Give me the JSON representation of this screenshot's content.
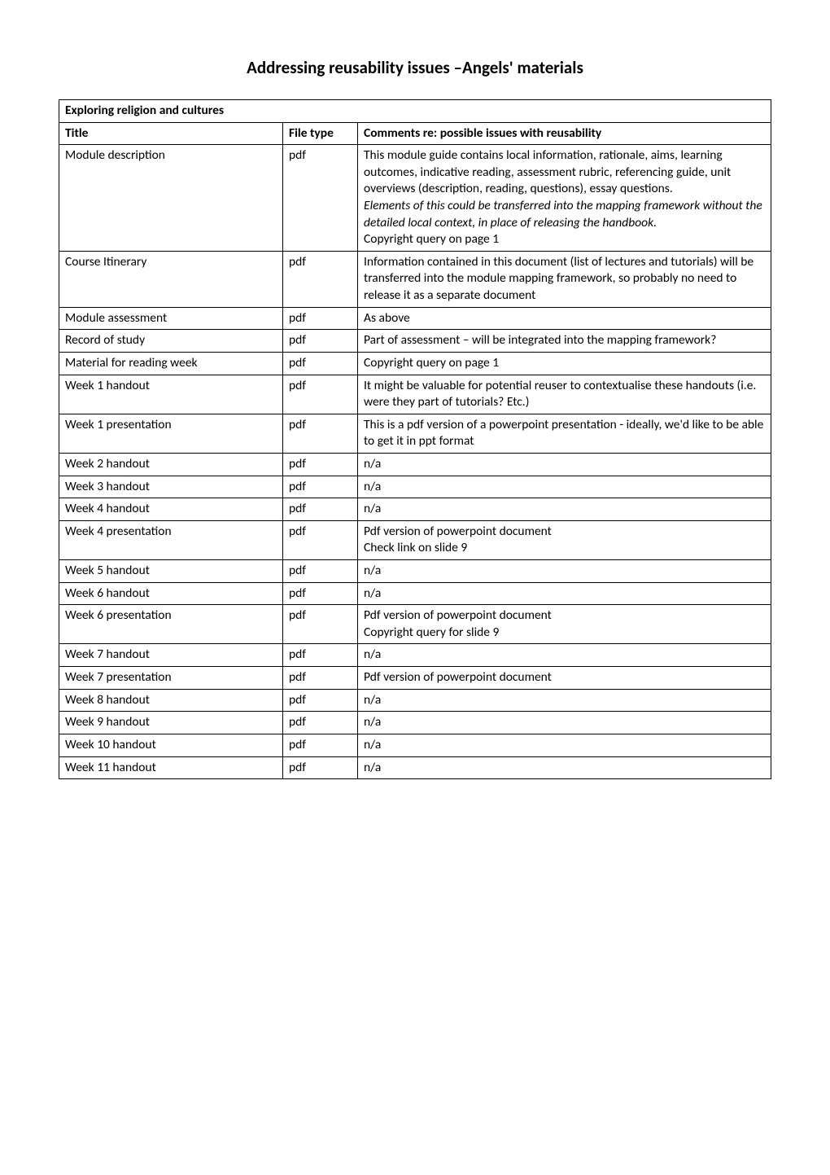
{
  "page": {
    "title": "Addressing reusability issues –Angels' materials"
  },
  "table": {
    "section_title": "Exploring religion and cultures",
    "headers": {
      "title": "Title",
      "file_type": "File type",
      "comments": "Comments re: possible issues with reusability"
    },
    "rows": [
      {
        "title": "Module description",
        "file_type": "pdf",
        "comments_plain": "This module guide contains local information, rationale, aims, learning outcomes, indicative reading, assessment rubric, referencing guide, unit overviews (description, reading, questions), essay questions.",
        "comments_italic": "Elements of this could be transferred into the mapping framework without the detailed local context, in place of releasing the handbook.",
        "comments_tail": "Copyright query on page 1"
      },
      {
        "title": "Course Itinerary",
        "file_type": "pdf",
        "comments": "Information contained in this document (list of lectures and tutorials) will be transferred into the module mapping framework, so probably no need to release it as a separate document"
      },
      {
        "title": "Module assessment",
        "file_type": "pdf",
        "comments": "As above"
      },
      {
        "title": "Record of study",
        "file_type": "pdf",
        "comments": "Part of assessment – will be integrated into the mapping framework?"
      },
      {
        "title": "Material for reading week",
        "file_type": "pdf",
        "comments": "Copyright query on page 1"
      },
      {
        "title": "Week 1 handout",
        "file_type": "pdf",
        "comments": "It might be valuable for potential reuser to contextualise these handouts (i.e. were they part of tutorials? Etc.)"
      },
      {
        "title": "Week 1 presentation",
        "file_type": "pdf",
        "comments": "This is a pdf version of a powerpoint presentation - ideally, we'd like to be able to get it in ppt format"
      },
      {
        "title": "Week 2  handout",
        "file_type": "pdf",
        "comments": "n/a"
      },
      {
        "title": "Week 3 handout",
        "file_type": "pdf",
        "comments": "n/a"
      },
      {
        "title": "Week 4 handout",
        "file_type": "pdf",
        "comments": "n/a"
      },
      {
        "title": "Week 4 presentation",
        "file_type": "pdf",
        "comments": "Pdf version of powerpoint document\nCheck link on slide 9"
      },
      {
        "title": "Week 5 handout",
        "file_type": "pdf",
        "comments": "n/a"
      },
      {
        "title": "Week 6 handout",
        "file_type": "pdf",
        "comments": "n/a"
      },
      {
        "title": "Week  6 presentation",
        "file_type": "pdf",
        "comments": "Pdf version of powerpoint document\nCopyright query for slide 9"
      },
      {
        "title": "Week 7 handout",
        "file_type": "pdf",
        "comments": "n/a"
      },
      {
        "title": "Week 7 presentation",
        "file_type": "pdf",
        "comments": "Pdf version of powerpoint document"
      },
      {
        "title": "Week 8 handout",
        "file_type": "pdf",
        "comments": "n/a"
      },
      {
        "title": "Week 9 handout",
        "file_type": "pdf",
        "comments": "n/a"
      },
      {
        "title": "Week 10 handout",
        "file_type": "pdf",
        "comments": "n/a"
      },
      {
        "title": "Week 11 handout",
        "file_type": "pdf",
        "comments": "n/a"
      }
    ]
  }
}
